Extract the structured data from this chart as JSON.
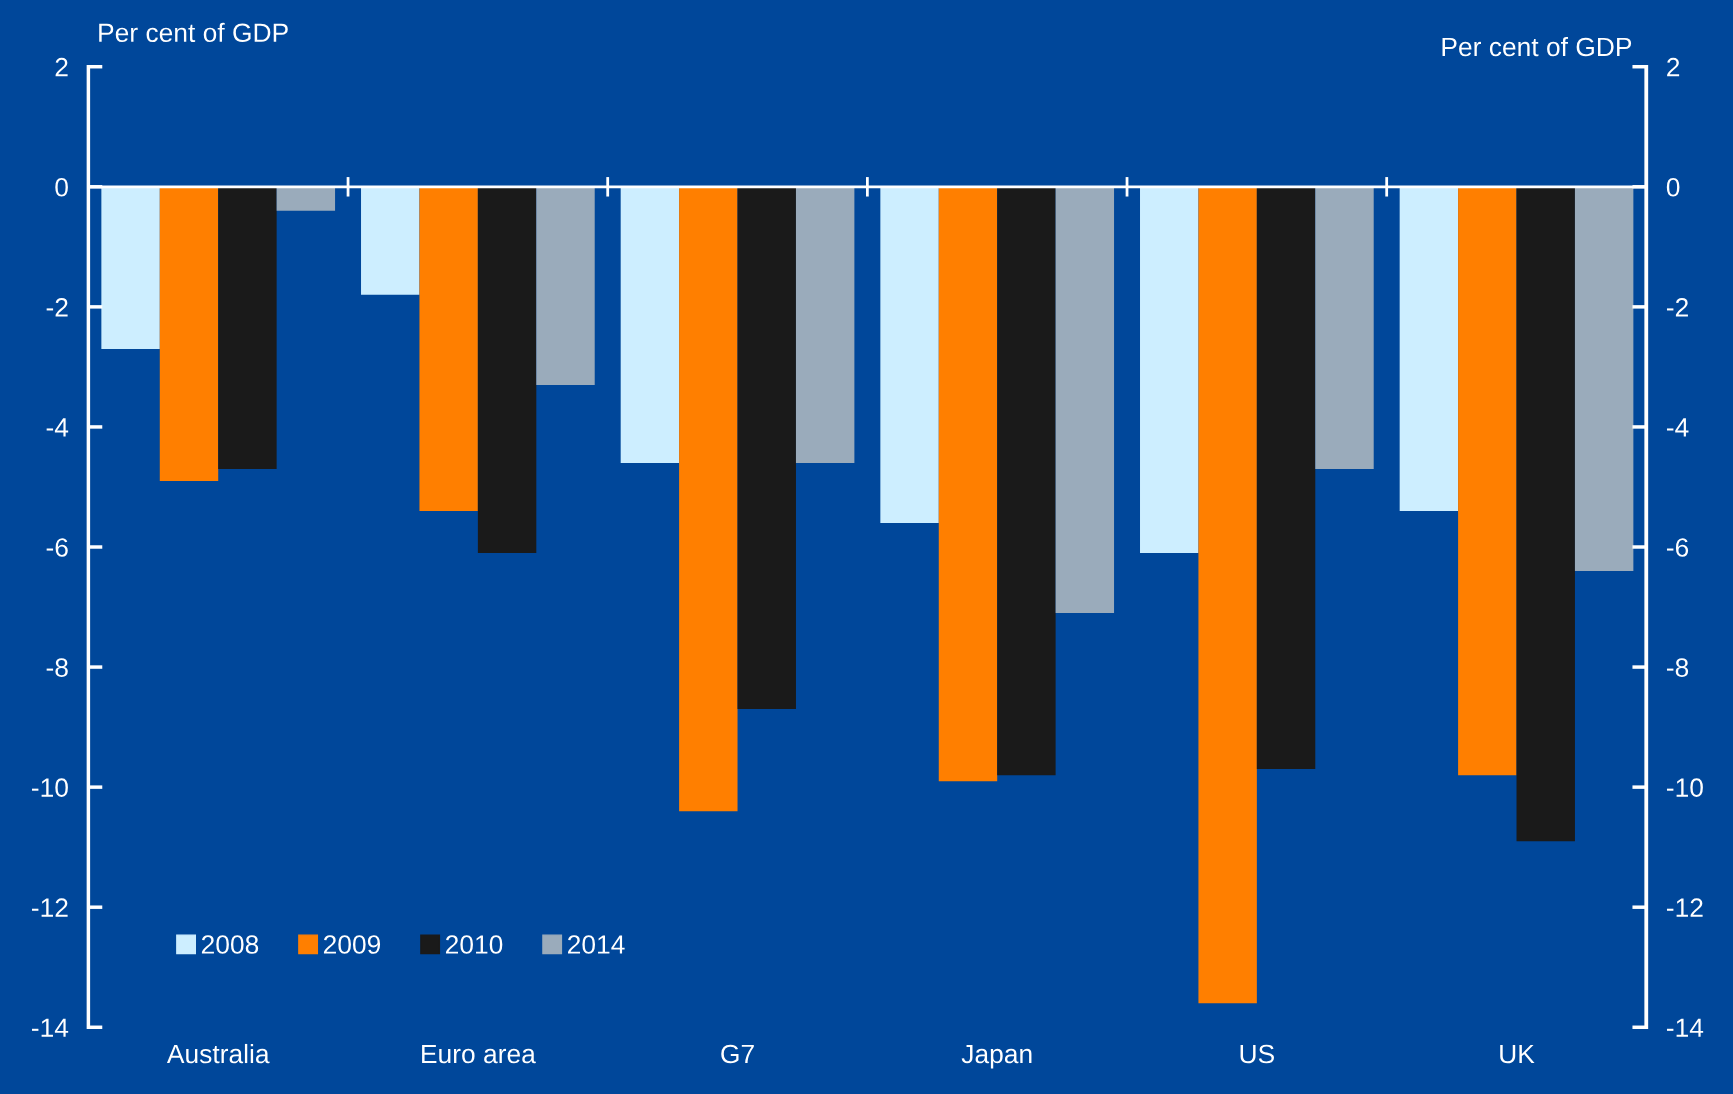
{
  "chart_data": {
    "type": "bar",
    "ylabel": "Per cent of GDP",
    "y2label": "Per cent of GDP",
    "categories": [
      "Australia",
      "Euro area",
      "G7",
      "Japan",
      "US",
      "UK"
    ],
    "series": [
      {
        "name": "2008",
        "color": "#cdeeff",
        "values": [
          -2.7,
          -1.8,
          -4.6,
          -5.6,
          -6.1,
          -5.4
        ]
      },
      {
        "name": "2009",
        "color": "#ff7f00",
        "values": [
          -4.9,
          -5.4,
          -10.4,
          -9.9,
          -13.6,
          -9.8
        ]
      },
      {
        "name": "2010",
        "color": "#1a1a1a",
        "values": [
          -4.7,
          -6.1,
          -8.7,
          -9.8,
          -9.7,
          -10.9
        ]
      },
      {
        "name": "2014",
        "color": "#9aabbb",
        "values": [
          -0.4,
          -3.3,
          -4.6,
          -7.1,
          -4.7,
          -6.4
        ]
      }
    ],
    "ylim": [
      -14,
      2
    ],
    "yticks": [
      -14,
      -12,
      -10,
      -8,
      -6,
      -4,
      -2,
      0,
      2
    ],
    "y2lim": [
      -14,
      2
    ],
    "y2ticks": [
      -14,
      -12,
      -10,
      -8,
      -6,
      -4,
      -2,
      0,
      2
    ],
    "legend": "bottom left"
  }
}
